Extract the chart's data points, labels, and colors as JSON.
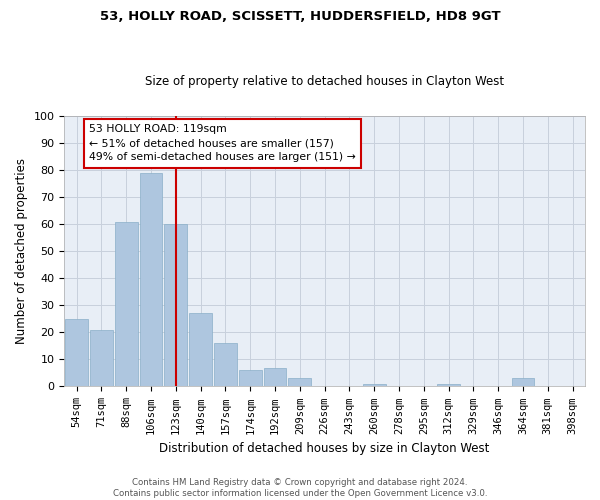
{
  "title1": "53, HOLLY ROAD, SCISSETT, HUDDERSFIELD, HD8 9GT",
  "title2": "Size of property relative to detached houses in Clayton West",
  "xlabel": "Distribution of detached houses by size in Clayton West",
  "ylabel": "Number of detached properties",
  "bar_labels": [
    "54sqm",
    "71sqm",
    "88sqm",
    "106sqm",
    "123sqm",
    "140sqm",
    "157sqm",
    "174sqm",
    "192sqm",
    "209sqm",
    "226sqm",
    "243sqm",
    "260sqm",
    "278sqm",
    "295sqm",
    "312sqm",
    "329sqm",
    "346sqm",
    "364sqm",
    "381sqm",
    "398sqm"
  ],
  "bar_values": [
    25,
    21,
    61,
    79,
    60,
    27,
    16,
    6,
    7,
    3,
    0,
    0,
    1,
    0,
    0,
    1,
    0,
    0,
    3,
    0,
    0
  ],
  "bar_color": "#aec6df",
  "bar_edge_color": "#8aafc8",
  "vline_x": 4,
  "annotation_title": "53 HOLLY ROAD: 119sqm",
  "annotation_line1": "← 51% of detached houses are smaller (157)",
  "annotation_line2": "49% of semi-detached houses are larger (151) →",
  "annotation_box_color": "#cc0000",
  "vline_color": "#cc0000",
  "grid_color": "#c8d0dc",
  "background_color": "#e8eef6",
  "ylim": [
    0,
    100
  ],
  "yticks": [
    0,
    10,
    20,
    30,
    40,
    50,
    60,
    70,
    80,
    90,
    100
  ],
  "footer1": "Contains HM Land Registry data © Crown copyright and database right 2024.",
  "footer2": "Contains public sector information licensed under the Open Government Licence v3.0."
}
